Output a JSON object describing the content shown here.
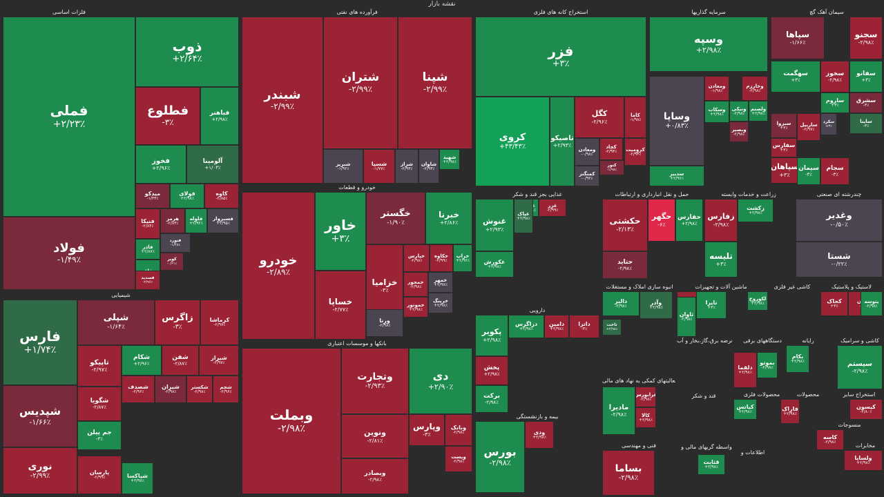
{
  "map_title": "نقشه بازار",
  "sections": [
    {
      "id": "s1",
      "title": "فلزات اساسی"
    },
    {
      "id": "s2",
      "title": "فرآورده های نفتی"
    },
    {
      "id": "s3",
      "title": "استخراج کانه های فلزی"
    },
    {
      "id": "s4",
      "title": "سرمایه گذاریها"
    },
    {
      "id": "s5",
      "title": "سیمان آهک گچ"
    },
    {
      "id": "s6",
      "title": "خودرو و قطعات"
    },
    {
      "id": "s7",
      "title": "شیمیایی"
    },
    {
      "id": "s8",
      "title": "بانکها و موسسات اعتباری"
    },
    {
      "id": "s9",
      "title": "غذایی بجز قند و شکر"
    },
    {
      "id": "s10",
      "title": "حمل و نقل انبارداری و ارتباطات"
    },
    {
      "id": "s11",
      "title": "زراعت و خدمات وابسته"
    },
    {
      "id": "s12",
      "title": "چندرشته ای صنعتی"
    },
    {
      "id": "s13",
      "title": "انبوه سازی املاک و مستغلات"
    },
    {
      "id": "s14",
      "title": "ماشین آلات و تجهیزات"
    },
    {
      "id": "s15",
      "title": "کاشی غیر فلزی"
    },
    {
      "id": "s16",
      "title": "لاستیک و پلاستیک"
    },
    {
      "id": "s17",
      "title": "دارویی"
    },
    {
      "id": "s18",
      "title": "عرضه برق،گاز،بخار و آب"
    },
    {
      "id": "s19",
      "title": "دستگاههای برقی"
    },
    {
      "id": "s20",
      "title": "رایانه"
    },
    {
      "id": "s21",
      "title": "کاشی و سرامیک"
    },
    {
      "id": "s22",
      "title": "فعالیتهای کمکی به نهاد های مالی"
    },
    {
      "id": "s23",
      "title": "قند و شکر"
    },
    {
      "id": "s24",
      "title": "محصولات فلزی"
    },
    {
      "id": "s25",
      "title": "محصولات"
    },
    {
      "id": "s26",
      "title": "استخراج سایر"
    },
    {
      "id": "s27",
      "title": "بیمه و بازنشستگی"
    },
    {
      "id": "s28",
      "title": "فنی و مهندسی"
    },
    {
      "id": "s29",
      "title": "واسطه گریهای مالی و"
    },
    {
      "id": "s30",
      "title": "اطلاعات و"
    },
    {
      "id": "s31",
      "title": "منسوجات"
    },
    {
      "id": "s32",
      "title": "مخابرات"
    }
  ],
  "tiles": [
    {
      "name": "فملی",
      "pct": "+۲/۲۳٪"
    },
    {
      "name": "ذوب",
      "pct": "+۲/۶۴٪"
    },
    {
      "name": "فطلوع",
      "pct": "-۳٪"
    },
    {
      "name": "فباهنر",
      "pct": "+۲/۹۸٪"
    },
    {
      "name": "فخوز",
      "pct": "+۲/۹۶٪"
    },
    {
      "name": "آلومینا",
      "pct": "+۱/۰۳٪"
    },
    {
      "name": "فولاد",
      "pct": "-۱/۴۹٪"
    },
    {
      "name": "میدکو",
      "pct": "-۱/۳۳٪"
    },
    {
      "name": "فولای",
      "pct": "+۲/۹۸٪"
    },
    {
      "name": "کاوه",
      "pct": "-۲/۸۵٪"
    },
    {
      "name": "فنیکا",
      "pct": "-۲/۸۴٪"
    },
    {
      "name": "هرمز",
      "pct": "-۲/۸۳٪"
    },
    {
      "name": "فلوله",
      "pct": "+۲/۹۲٪"
    },
    {
      "name": "فسبزوار",
      "pct": "+۲/۹۵٪"
    },
    {
      "name": "فاذر",
      "pct": "+۲/۸۷٪"
    },
    {
      "name": "فنورد",
      "pct": "-۱/۴۸٪"
    },
    {
      "name": "فاق",
      "pct": "+۲/۹۸٪"
    },
    {
      "name": "کویر",
      "pct": "-۰/۶۱٪"
    },
    {
      "name": "فسدید",
      "pct": "-۲/۹۶٪"
    },
    {
      "name": "شبندر",
      "pct": "-۲/۹۹٪"
    },
    {
      "name": "شتران",
      "pct": "-۲/۹۹٪"
    },
    {
      "name": "شپنا",
      "pct": "-۲/۹۹٪"
    },
    {
      "name": "شبریز",
      "pct": "-۱/۹۲٪"
    },
    {
      "name": "شسپا",
      "pct": "-۱/۷۷٪"
    },
    {
      "name": "شراز",
      "pct": "-۲/۹۳٪"
    },
    {
      "name": "شاوان",
      "pct": "-۲/۹۳٪"
    },
    {
      "name": "شهید",
      "pct": "+۲/۹۸٪"
    },
    {
      "name": "فزر",
      "pct": "+۳٪"
    },
    {
      "name": "کروی",
      "pct": "+۴۳/۴۳٪"
    },
    {
      "name": "تاصیکو",
      "pct": "+۲/۹۳٪"
    },
    {
      "name": "کگل",
      "pct": "-۲/۹۶٪"
    },
    {
      "name": "کاما",
      "pct": "-۱/۹۸٪"
    },
    {
      "name": "کچاد",
      "pct": "-۲/۹۴٪"
    },
    {
      "name": "کرومیت",
      "pct": "-۲/۹۴٪"
    },
    {
      "name": "ومعادن",
      "pct": "-۰/۹۸٪"
    },
    {
      "name": "کنور",
      "pct": "-۱/۹۸٪"
    },
    {
      "name": "کمنگنز",
      "pct": "-۰/۹۲٪"
    },
    {
      "name": "وسپه",
      "pct": "+۲/۹۸٪"
    },
    {
      "name": "وساپا",
      "pct": "+۰/۸۳٪"
    },
    {
      "name": "ومعادن",
      "pct": "-۱/۹۸٪"
    },
    {
      "name": "وخارزم",
      "pct": "-۲/۹۸٪"
    },
    {
      "name": "ونیکی",
      "pct": "-۲/۹۸٪"
    },
    {
      "name": "وبصیر",
      "pct": "-۲/۹۸٪"
    },
    {
      "name": "وسکاب",
      "pct": "+۲/۹۸٪"
    },
    {
      "name": "ولصنم",
      "pct": "+۲/۹۸٪"
    },
    {
      "name": "سدبیر",
      "pct": "+۲/۹۶٪"
    },
    {
      "name": "سپاها",
      "pct": "-۱/۶۶٪"
    },
    {
      "name": "سجنو",
      "pct": "-۲/۹۸٪"
    },
    {
      "name": "ساربیل",
      "pct": "-۲/۹۷٪"
    },
    {
      "name": "سخوز",
      "pct": "-۲/۹۸٪"
    },
    {
      "name": "سفانو",
      "pct": "+۳٪"
    },
    {
      "name": "سپاهان",
      "pct": "+۳٪"
    },
    {
      "name": "سکرد",
      "pct": "+۳٪"
    },
    {
      "name": "سفارس",
      "pct": "+۳٪"
    },
    {
      "name": "ساروم",
      "pct": "+۳٪"
    },
    {
      "name": "سشرق",
      "pct": "-۳٪"
    },
    {
      "name": "سیمان",
      "pct": "-۳٪"
    },
    {
      "name": "سجام",
      "pct": "-۳٪"
    },
    {
      "name": "سهگمت",
      "pct": "+۳٪"
    },
    {
      "name": "سبزوا",
      "pct": "+۳٪"
    },
    {
      "name": "ساینا",
      "pct": "-۳٪"
    },
    {
      "name": "خودرو",
      "pct": "-۲/۸۹٪"
    },
    {
      "name": "خاور",
      "pct": "+۳٪"
    },
    {
      "name": "خگستر",
      "pct": "-۱/۹۰٪"
    },
    {
      "name": "خبرنا",
      "pct": "+۲/۸۶٪"
    },
    {
      "name": "خزامیا",
      "pct": "-۳٪"
    },
    {
      "name": "خساپا",
      "pct": "-۲/۷۷٪"
    },
    {
      "name": "ورنا",
      "pct": "-۲/۹۸٪"
    },
    {
      "name": "خپارس",
      "pct": "-۲/۹۸٪"
    },
    {
      "name": "خکاوه",
      "pct": "-۲/۹۹٪"
    },
    {
      "name": "خزاپ",
      "pct": "+۲/۹۶٪"
    },
    {
      "name": "خمحور",
      "pct": "-۲/۹۸٪"
    },
    {
      "name": "خمهر",
      "pct": "+۲/۹۸٪"
    },
    {
      "name": "خموتور",
      "pct": "+۲/۹۸٪"
    },
    {
      "name": "خرینگ",
      "pct": "+۲/۹۸٪"
    },
    {
      "name": "فارس",
      "pct": "+۱/۷۴٪"
    },
    {
      "name": "شپلی",
      "pct": "-۱/۶۴٪"
    },
    {
      "name": "زاگرس",
      "pct": "-۳٪"
    },
    {
      "name": "کرماشا",
      "pct": "-۲/۹۷٪"
    },
    {
      "name": "شپدیس",
      "pct": "-۱/۶۶٪"
    },
    {
      "name": "تاپیکو",
      "pct": "-۲/۹۷٪"
    },
    {
      "name": "شکام",
      "pct": "+۲/۹۶٪"
    },
    {
      "name": "شفن",
      "pct": "-۲/۸۷٪"
    },
    {
      "name": "شیراز",
      "pct": "-۲/۹۷٪"
    },
    {
      "name": "شگویا",
      "pct": "-۲/۸۷٪"
    },
    {
      "name": "شصدف",
      "pct": "-۲/۹۶٪"
    },
    {
      "name": "شیران",
      "pct": "-۲/۹۸٪"
    },
    {
      "name": "شکستر",
      "pct": "-۲/۹۸٪"
    },
    {
      "name": "شجم",
      "pct": "-۲/۹۶٪"
    },
    {
      "name": "جم پیلن",
      "pct": "-۳٪"
    },
    {
      "name": "نوری",
      "pct": "-۲/۹۹٪"
    },
    {
      "name": "پارسان",
      "pct": "-۲/۹۹٪"
    },
    {
      "name": "شپاکسا",
      "pct": "+۲/۹۸٪"
    },
    {
      "name": "وبملت",
      "pct": "-۲/۹۸٪"
    },
    {
      "name": "وتجارت",
      "pct": "-۲/۹۳٪"
    },
    {
      "name": "دی",
      "pct": "+۲/۹۰٪"
    },
    {
      "name": "ونوین",
      "pct": "-۲/۸۱٪"
    },
    {
      "name": "وپارس",
      "pct": "-۳٪"
    },
    {
      "name": "وبصادر",
      "pct": "-۲/۹۸٪"
    },
    {
      "name": "وبانک",
      "pct": "-۲/۹۸٪"
    },
    {
      "name": "وپست",
      "pct": "-۲/۹۸٪"
    },
    {
      "name": "غنوش",
      "pct": "+۲/۹۳٪"
    },
    {
      "name": "غبینو",
      "pct": "+۲/۹۸٪"
    },
    {
      "name": "غزر",
      "pct": "-۲/۹۹٪"
    },
    {
      "name": "غکورش",
      "pct": "+۲/۹۸٪"
    },
    {
      "name": "غپاک",
      "pct": "+۲/۹۸٪"
    },
    {
      "name": "حکشتی",
      "pct": "-۲/۱۳٪"
    },
    {
      "name": "حگهر",
      "pct": "-۶٪"
    },
    {
      "name": "حفارس",
      "pct": "+۲/۹۸٪"
    },
    {
      "name": "حتاید",
      "pct": "-۲/۹۸٪"
    },
    {
      "name": "زفارس",
      "pct": "-۲/۹۸٪"
    },
    {
      "name": "زکشت",
      "pct": "+۲/۹۸٪"
    },
    {
      "name": "تلیسه",
      "pct": "+۳٪"
    },
    {
      "name": "وغدیر",
      "pct": "-۰/۵۰٪"
    },
    {
      "name": "شستا",
      "pct": "-۰/۲۲٪"
    },
    {
      "name": "دالبر",
      "pct": "-۲/۹۸٪"
    },
    {
      "name": "ثاخت",
      "pct": "+۲/۹۸٪"
    },
    {
      "name": "وآذر",
      "pct": "+۲/۹۸٪"
    },
    {
      "name": "کرمان",
      "pct": "+۲/۹۸٪"
    },
    {
      "name": "ثاوان",
      "pct": "-۲/۹۸٪"
    },
    {
      "name": "تایرا",
      "pct": "+۳٪"
    },
    {
      "name": "لکوروح",
      "pct": "+۲/۹۸٪"
    },
    {
      "name": "کحاک",
      "pct": "+۳٪"
    },
    {
      "name": "پکرمان",
      "pct": "-۲/۹۸٪"
    },
    {
      "name": "پتوسه",
      "pct": "-۲/۹۸٪"
    },
    {
      "name": "پکویر",
      "pct": "+۲/۹۸٪"
    },
    {
      "name": "دزاگرس",
      "pct": "+۲/۹۸٪"
    },
    {
      "name": "دامین",
      "pct": "+۲/۹۸٪"
    },
    {
      "name": "داتزا",
      "pct": "-۳٪"
    },
    {
      "name": "پخش",
      "pct": "+۲/۹۸٪"
    },
    {
      "name": "برکت",
      "pct": "-۲/۹۸٪"
    },
    {
      "name": "دلقما",
      "pct": "+۲/۹۸٪"
    },
    {
      "name": "بموتو",
      "pct": "-۲/۹۸٪"
    },
    {
      "name": "بکام",
      "pct": "+۲/۹۸٪"
    },
    {
      "name": "سیستم",
      "pct": "-۲/۹۸٪"
    },
    {
      "name": "کیاتس",
      "pct": "+۲/۹۸٪"
    },
    {
      "name": "فاراک",
      "pct": "+۲/۹۸٪"
    },
    {
      "name": "ماديرا",
      "pct": "-۲/۹۸٪"
    },
    {
      "name": "فرابورس",
      "pct": "-۲/۹۸٪"
    },
    {
      "name": "کالا",
      "pct": "+۲/۹۸٪"
    },
    {
      "name": "بورس",
      "pct": "-۲/۹۸٪"
    },
    {
      "name": "ودی",
      "pct": "+۲/۹۸٪"
    },
    {
      "name": "بساما",
      "pct": "-۲/۹۸٪"
    },
    {
      "name": "کیسون",
      "pct": "-۲/۸۰٪"
    },
    {
      "name": "کاسه",
      "pct": "-۲/۹۸٪"
    },
    {
      "name": "قثابت",
      "pct": "+۲/۹۸٪"
    },
    {
      "name": "ولساپا",
      "pct": "+۲/۹۸٪"
    },
    {
      "name": "اخابر",
      "pct": "-۲/۹۸٪"
    }
  ]
}
